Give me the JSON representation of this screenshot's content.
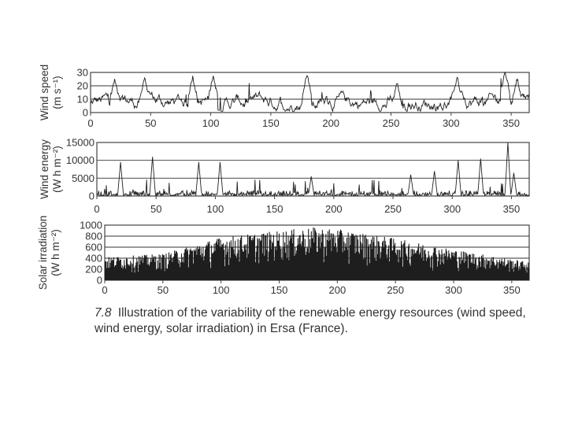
{
  "caption": {
    "number": "7.8",
    "text": "Illustration of the variability of the renewable energy resources (wind speed, wind energy, solar irradiation) in Ersa (France)."
  },
  "chart_data": [
    {
      "type": "line",
      "ylabel_line1": "Wind speed",
      "ylabel_line2": "(m s⁻¹)",
      "xlim": [
        0,
        365
      ],
      "ylim": [
        0,
        30
      ],
      "yticks": [
        "0",
        "10",
        "20",
        "30"
      ],
      "xticks": [
        "0",
        "50",
        "100",
        "150",
        "200",
        "250",
        "300",
        "350"
      ],
      "grid": "horizontal",
      "series": [
        {
          "values_note_free": true,
          "peaks": [
            [
              20,
              24
            ],
            [
              45,
              25
            ],
            [
              85,
              25
            ],
            [
              102,
              26
            ],
            [
              180,
              27
            ],
            [
              255,
              21
            ],
            [
              305,
              25
            ],
            [
              345,
              29
            ],
            [
              355,
              24
            ]
          ]
        }
      ]
    },
    {
      "type": "line",
      "ylabel_line1": "Wind energy",
      "ylabel_line2": "(W h m⁻²)",
      "xlim": [
        0,
        365
      ],
      "ylim": [
        0,
        15000
      ],
      "yticks": [
        "0",
        "5000",
        "10000",
        "15000"
      ],
      "xticks": [
        "0",
        "50",
        "100",
        "150",
        "200",
        "250",
        "300",
        "350"
      ],
      "grid": "horizontal",
      "series": [
        {
          "peaks": [
            [
              20,
              9500
            ],
            [
              47,
              11000
            ],
            [
              86,
              9500
            ],
            [
              104,
              9500
            ],
            [
              181,
              5500
            ],
            [
              265,
              6000
            ],
            [
              285,
              7000
            ],
            [
              305,
              10000
            ],
            [
              324,
              10500
            ],
            [
              347,
              15000
            ],
            [
              352,
              6500
            ]
          ]
        }
      ]
    },
    {
      "type": "bar",
      "ylabel_line1": "Solar irradiation",
      "ylabel_line2": "(W h m⁻²)",
      "xlim": [
        0,
        365
      ],
      "ylim": [
        0,
        1000
      ],
      "yticks": [
        "0",
        "200",
        "400",
        "600",
        "800",
        "1000"
      ],
      "xticks": [
        "0",
        "50",
        "100",
        "150",
        "200",
        "250",
        "300",
        "350"
      ],
      "grid": "horizontal",
      "series": [
        {
          "envelope": [
            [
              0,
              420
            ],
            [
              50,
              480
            ],
            [
              100,
              780
            ],
            [
              150,
              900
            ],
            [
              180,
              960
            ],
            [
              200,
              930
            ],
            [
              250,
              760
            ],
            [
              300,
              560
            ],
            [
              365,
              330
            ]
          ]
        }
      ]
    }
  ]
}
